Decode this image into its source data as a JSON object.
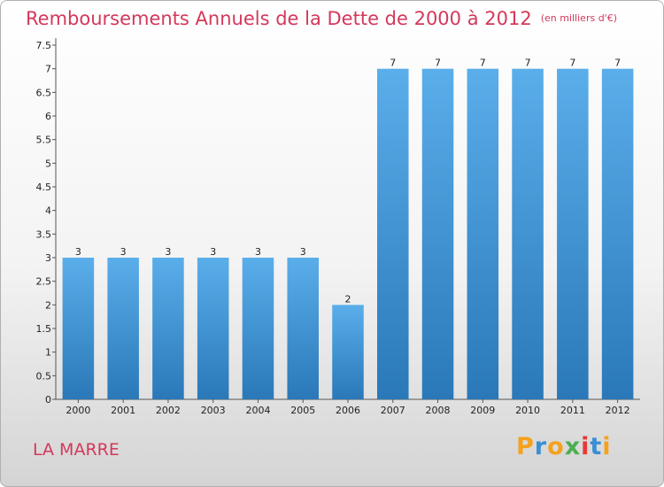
{
  "chart_data": {
    "type": "bar",
    "title": "Remboursements Annuels de la Dette de 2000 à 2012",
    "unit_note": "(en milliers d'€)",
    "categories": [
      "2000",
      "2001",
      "2002",
      "2003",
      "2004",
      "2005",
      "2006",
      "2007",
      "2008",
      "2009",
      "2010",
      "2011",
      "2012"
    ],
    "values": [
      3,
      3,
      3,
      3,
      3,
      3,
      2,
      7,
      7,
      7,
      7,
      7,
      7
    ],
    "y_ticks": [
      "0",
      "0.5",
      "1",
      "1.5",
      "2",
      "2.5",
      "3",
      "3.5",
      "4",
      "4.5",
      "5",
      "5.5",
      "6",
      "6.5",
      "7",
      "7.5"
    ],
    "ylim": [
      0,
      7.5
    ],
    "grid": false,
    "bar_color": "#3a8fd4"
  },
  "footer": {
    "commune": "LA MARRE",
    "logo": "Proxiti"
  },
  "colors": {
    "title": "#d4385a",
    "logo_letters": [
      "#f4a21d",
      "#3a8fd4",
      "#f4a21d",
      "#4caf50",
      "#e53935",
      "#3a8fd4",
      "#f4a21d"
    ]
  }
}
